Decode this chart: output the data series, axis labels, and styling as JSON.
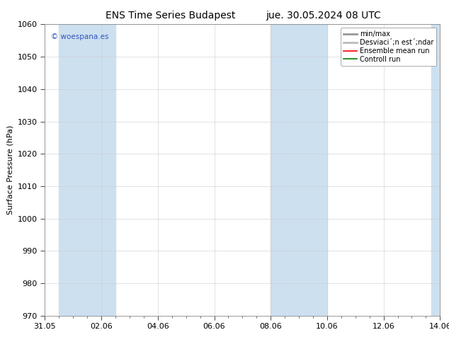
{
  "title_left": "ENS Time Series Budapest",
  "title_right": "jue. 30.05.2024 08 UTC",
  "ylabel": "Surface Pressure (hPa)",
  "ylim": [
    970,
    1060
  ],
  "yticks": [
    970,
    980,
    990,
    1000,
    1010,
    1020,
    1030,
    1040,
    1050,
    1060
  ],
  "xlim": [
    0,
    14
  ],
  "xtick_labels": [
    "31.05",
    "02.06",
    "04.06",
    "06.06",
    "08.06",
    "10.06",
    "12.06",
    "14.06"
  ],
  "xtick_positions": [
    0,
    2,
    4,
    6,
    8,
    10,
    12,
    14
  ],
  "shaded_regions": [
    {
      "xmin": 0.5,
      "xmax": 2.5,
      "color": "#cce0f0"
    },
    {
      "xmin": 8.0,
      "xmax": 10.0,
      "color": "#cce0f0"
    },
    {
      "xmin": 13.7,
      "xmax": 14.0,
      "color": "#cce0f0"
    }
  ],
  "legend_labels": [
    "min/max",
    "Desviaci´;n est´;ndar",
    "Ensemble mean run",
    "Controll run"
  ],
  "legend_colors": [
    "#a0b8c8",
    "#c0d4e0",
    "red",
    "green"
  ],
  "legend_lws": [
    3,
    3,
    1.5,
    1.5
  ],
  "watermark": "© woespana.es",
  "bg_color": "#ffffff",
  "plot_bg_color": "#ffffff",
  "grid_color": "#cccccc",
  "border_color": "#888888",
  "title_fontsize": 10,
  "axis_label_fontsize": 8,
  "tick_fontsize": 8,
  "legend_fontsize": 7,
  "watermark_color": "#3355bb"
}
